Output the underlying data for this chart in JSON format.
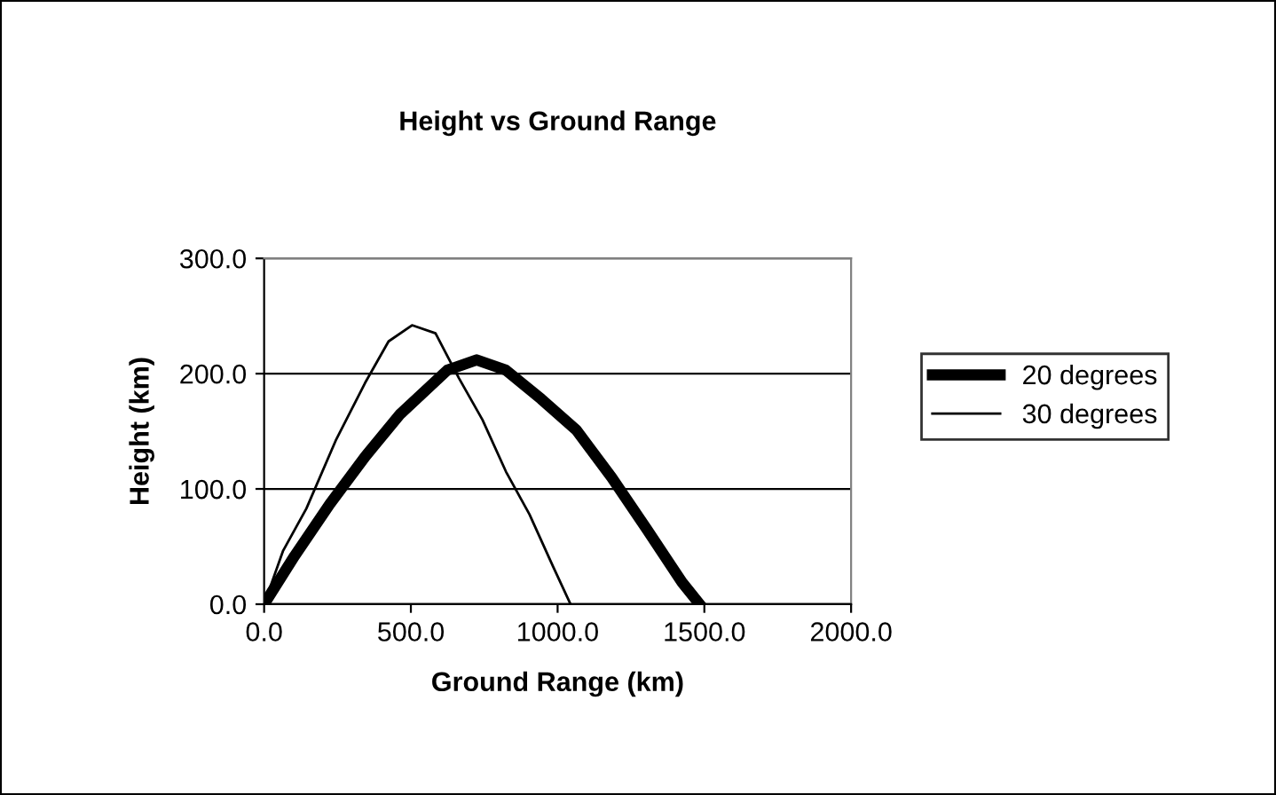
{
  "chart_data": {
    "type": "line",
    "title": "Height vs Ground Range",
    "xlabel": "Ground Range (km)",
    "ylabel": "Height (km)",
    "xlim": [
      0,
      2000
    ],
    "xticks": [
      {
        "value": 0,
        "label": "0.0"
      },
      {
        "value": 500,
        "label": "500.0"
      },
      {
        "value": 1000,
        "label": "1000.0"
      },
      {
        "value": 1500,
        "label": "1500.0"
      },
      {
        "value": 2000,
        "label": "2000.0"
      }
    ],
    "ylim": [
      0,
      300
    ],
    "yticks": [
      {
        "value": 0,
        "label": "0.0"
      },
      {
        "value": 100,
        "label": "100.0"
      },
      {
        "value": 200,
        "label": "200.0"
      },
      {
        "value": 300,
        "label": "300.0"
      }
    ],
    "grid": "y",
    "legend": "right",
    "marker": "none",
    "series": [
      {
        "name": "20 degrees",
        "color": "#000000",
        "x": [
          0,
          104,
          224,
          344,
          464,
          624,
          724,
          824,
          944,
          1064,
          1184,
          1304,
          1424,
          1484
        ],
        "values": [
          0,
          42,
          87,
          128,
          165,
          203,
          212,
          203,
          178,
          151,
          110,
          65,
          19,
          0
        ]
      },
      {
        "name": "30 degrees",
        "color": "#000000",
        "x": [
          0,
          64,
          144,
          244,
          344,
          424,
          504,
          584,
          664,
          744,
          824,
          904,
          984,
          1044
        ],
        "values": [
          0,
          46,
          83,
          142,
          192,
          228,
          242,
          235,
          196,
          160,
          115,
          78,
          33,
          0
        ]
      }
    ]
  }
}
